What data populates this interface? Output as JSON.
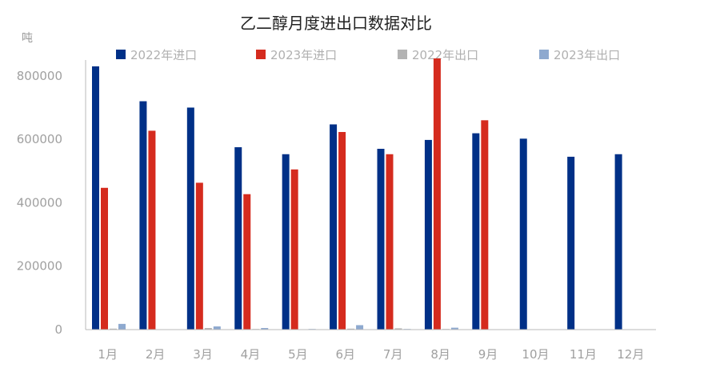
{
  "chart_data": {
    "type": "bar",
    "title": "乙二醇月度进出口数据对比",
    "ylabel": "吨",
    "ylim": [
      0,
      850000
    ],
    "yticks": [
      "0",
      "200000",
      "400000",
      "600000",
      "800000"
    ],
    "ytick_values": [
      0,
      200000,
      400000,
      600000,
      800000
    ],
    "grid": false,
    "legend_position": "top",
    "categories": [
      "1月",
      "2月",
      "3月",
      "4月",
      "5月",
      "6月",
      "7月",
      "8月",
      "9月",
      "10月",
      "11月",
      "12月"
    ],
    "series": [
      {
        "name": "2022年进口",
        "color": "#003087",
        "values": [
          830000,
          720000,
          700000,
          575000,
          553000,
          647000,
          570000,
          598000,
          619000,
          602000,
          545000,
          553000
        ]
      },
      {
        "name": "2023年进口",
        "color": "#d52b1e",
        "values": [
          447000,
          627000,
          463000,
          427000,
          505000,
          623000,
          553000,
          855000,
          660000,
          null,
          null,
          null
        ]
      },
      {
        "name": "2022年出口",
        "color": "#b3b3b3",
        "values": [
          3000,
          1000,
          5000,
          2000,
          1000,
          3000,
          4000,
          2000,
          1000,
          1000,
          1000,
          1000
        ]
      },
      {
        "name": "2023年出口",
        "color": "#8ea9cf",
        "values": [
          18000,
          1000,
          10000,
          5000,
          2000,
          14000,
          2000,
          6000,
          null,
          null,
          null,
          null
        ]
      }
    ]
  }
}
